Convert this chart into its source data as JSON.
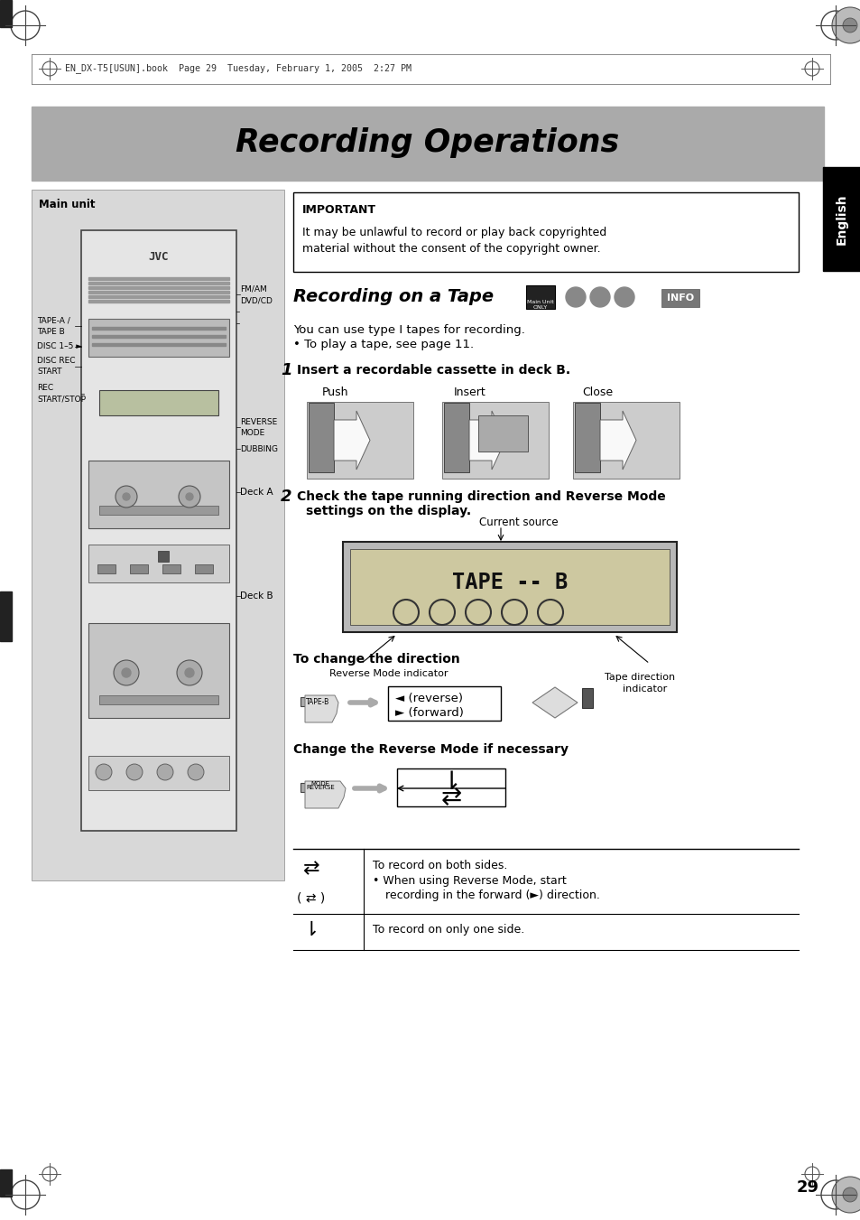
{
  "page_bg": "#ffffff",
  "header_bg": "#aaaaaa",
  "title_text": "Recording Operations",
  "english_tab_text": "English",
  "header_file_text": "EN_DX-T5[USUN].book  Page 29  Tuesday, February 1, 2005  2:27 PM",
  "page_number": "29",
  "section_title": "Recording on a Tape",
  "important_title": "IMPORTANT",
  "important_text1": "It may be unlawful to record or play back copyrighted",
  "important_text2": "material without the consent of the copyright owner.",
  "main_unit_label": "Main unit",
  "step1_text": "Insert a recordable cassette in deck B.",
  "step2_text1": "Check the tape running direction and Reverse Mode",
  "step2_text2": "settings on the display.",
  "direction_text": "To change the direction",
  "reverse_mode_text": "Change the Reverse Mode if necessary",
  "intro_text1": "You can use type I tapes for recording.",
  "intro_text2": "• To play a tape, see page 11.",
  "push_label": "Push",
  "insert_label": "Insert",
  "close_label": "Close",
  "reverse_mode_indicator": "Reverse Mode indicator",
  "tape_direction_indicator1": "Tape direction",
  "tape_direction_indicator2": "indicator",
  "current_source": "Current source",
  "fm_am_label": "FM/AM",
  "dvd_cd_label": "DVD/CD",
  "tape_a_label": "TAPE-A /",
  "tape_b_label": "TAPE B",
  "disc_1_5_label": "DISC 1–5 ►",
  "disc_rec_label": "DISC REC",
  "start_label": "START",
  "rec_label": "REC",
  "start_stop_label": "START/STOP",
  "reverse_mode_label1": "REVERSE",
  "reverse_mode_label2": "MODE",
  "dubbing_label": "DUBBING",
  "deck_a_label": "Deck A",
  "deck_b_label": "Deck B",
  "forward_label": "► (forward)",
  "reverse_label": "◄ (reverse)",
  "table_row1_right1": "To record on both sides.",
  "table_row1_right2": "• When using Reverse Mode, start",
  "table_row1_right3": "  recording in the forward (►) direction.",
  "table_row2_right": "To record on only one side.",
  "tape_b_button": "TAPE-B",
  "reverse_mode_btn1": "REVERSE",
  "reverse_mode_btn2": "MODE",
  "jvc_label": "JVC",
  "main_unit_only1": "Main Unit",
  "main_unit_only2": "ONLY",
  "info_label": "INFO"
}
